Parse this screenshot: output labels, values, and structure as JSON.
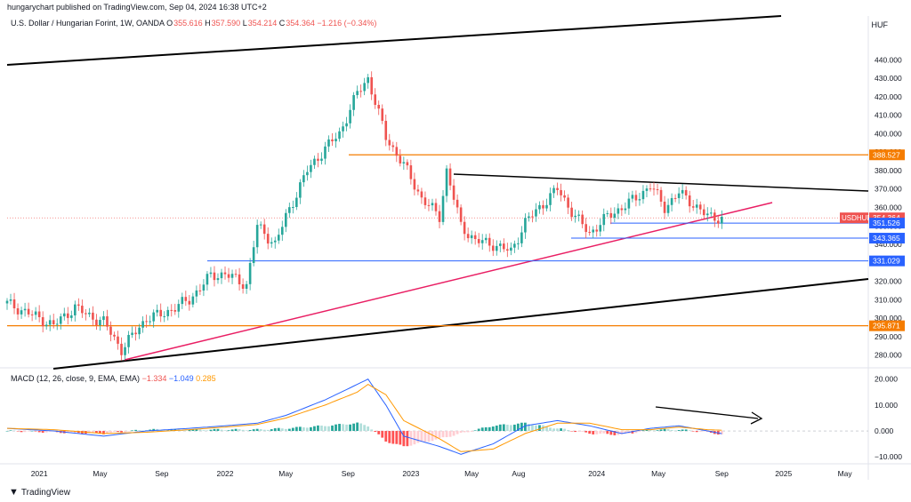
{
  "header": {
    "published": "hungarychart published on TradingView.com, Sep 04, 2024 16:38 UTC+2"
  },
  "legend": {
    "symbol": "U.S. Dollar / Hungarian Forint, 1W, OANDA",
    "open_label": "O",
    "open": "355.616",
    "high_label": "H",
    "high": "357.590",
    "low_label": "L",
    "low": "354.214",
    "close_label": "C",
    "close": "354.364",
    "change": "−1.216 (−0.34%)"
  },
  "currency": "HUF",
  "macd_legend": {
    "label": "MACD (12, 26, close, 9, EMA, EMA)",
    "hist": "−1.334",
    "macd": "−1.049",
    "signal": "0.285"
  },
  "brand": "TradingView",
  "colors": {
    "up": "#26a69a",
    "down": "#ef5350",
    "orange_line": "#f57c00",
    "blue_line": "#2962ff",
    "pink_line": "#e91e63",
    "macd_line": "#2962ff",
    "signal_line": "#ff9800"
  },
  "chart_data": [
    {
      "type": "line",
      "subtype": "candlestick-weekly",
      "title": "U.S. Dollar / Hungarian Forint, 1W, OANDA",
      "x_ticks": [
        "2021",
        "May",
        "Sep",
        "2022",
        "May",
        "Sep",
        "2023",
        "May",
        "Aug",
        "2024",
        "May",
        "Sep",
        "2025",
        "May"
      ],
      "y_ticks": [
        280,
        290,
        300,
        310,
        320,
        330,
        340,
        350,
        360,
        370,
        380,
        390,
        400,
        410,
        420,
        430,
        440
      ],
      "ylim": [
        275,
        458
      ],
      "x_dates": [
        "2020-11-02",
        "2021-01-04",
        "2021-02-01",
        "2021-03-15",
        "2021-04-05",
        "2021-05-10",
        "2021-06-14",
        "2021-08-02",
        "2021-09-01",
        "2021-10-25",
        "2021-12-06",
        "2022-01-03",
        "2022-02-14",
        "2022-03-07",
        "2022-04-11",
        "2022-05-02",
        "2022-06-13",
        "2022-07-18",
        "2022-08-15",
        "2022-09-19",
        "2022-10-10",
        "2022-11-14",
        "2022-12-19",
        "2023-01-23",
        "2023-02-27",
        "2023-03-13",
        "2023-04-10",
        "2023-05-08",
        "2023-06-12",
        "2023-07-17",
        "2023-08-14",
        "2023-09-18",
        "2023-10-16",
        "2023-11-20",
        "2023-12-18",
        "2024-01-22",
        "2024-02-19",
        "2024-03-18",
        "2024-04-15",
        "2024-05-13",
        "2024-06-10",
        "2024-07-08",
        "2024-08-05",
        "2024-09-02"
      ],
      "close_values": [
        308,
        300,
        296,
        306,
        302,
        298,
        283,
        300,
        302,
        310,
        323,
        324,
        318,
        350,
        340,
        355,
        380,
        392,
        400,
        422,
        430,
        398,
        383,
        365,
        355,
        380,
        350,
        342,
        340,
        336,
        352,
        362,
        370,
        355,
        346,
        355,
        360,
        365,
        372,
        360,
        368,
        362,
        355,
        354.364
      ],
      "price_labels": [
        {
          "text": "388.527",
          "value": 388.527,
          "color": "#f57c00"
        },
        {
          "text": "354.364",
          "value": 354.364,
          "color": "#ef5350",
          "tag": "USDHUF"
        },
        {
          "text": "351.526",
          "value": 351.526,
          "color": "#2962ff"
        },
        {
          "text": "343.365",
          "value": 343.365,
          "color": "#2962ff"
        },
        {
          "text": "331.029",
          "value": 331.029,
          "color": "#2962ff"
        },
        {
          "text": "295.871",
          "value": 295.871,
          "color": "#f57c00"
        }
      ]
    },
    {
      "type": "bar",
      "subtype": "macd",
      "title": "MACD (12, 26, close, 9, EMA, EMA)",
      "y_ticks": [
        -10,
        0,
        10,
        20
      ],
      "ylim": [
        -12,
        23
      ],
      "x_dates": [
        "2020-11-02",
        "2021-02-01",
        "2021-05-10",
        "2021-08-02",
        "2021-10-25",
        "2022-01-03",
        "2022-03-07",
        "2022-05-02",
        "2022-07-18",
        "2022-09-19",
        "2022-10-10",
        "2022-11-14",
        "2022-12-19",
        "2023-02-27",
        "2023-04-10",
        "2023-06-12",
        "2023-08-14",
        "2023-10-16",
        "2023-12-18",
        "2024-02-19",
        "2024-04-15",
        "2024-06-10",
        "2024-08-05",
        "2024-09-02"
      ],
      "macd_values": [
        1,
        0,
        -2,
        0,
        1,
        2,
        3,
        6,
        12,
        18,
        20,
        10,
        -2,
        -6,
        -9,
        -5,
        2,
        4,
        2,
        -1,
        1,
        2,
        0,
        -1.049
      ],
      "signal_values": [
        1,
        0.5,
        -1,
        -0.5,
        0.5,
        1.5,
        2.5,
        5,
        10,
        15,
        18,
        14,
        4,
        -3,
        -8,
        -7,
        -1,
        3,
        3,
        0.5,
        0.5,
        1.5,
        0.5,
        0.285
      ],
      "histogram_values": [
        0,
        -0.5,
        -1,
        0.5,
        0.5,
        0.5,
        0.5,
        1,
        2,
        3,
        2,
        -4,
        -6,
        -3,
        -1,
        2,
        3,
        1,
        -1,
        -1.5,
        0.5,
        0.5,
        -0.5,
        -1.334
      ]
    }
  ]
}
